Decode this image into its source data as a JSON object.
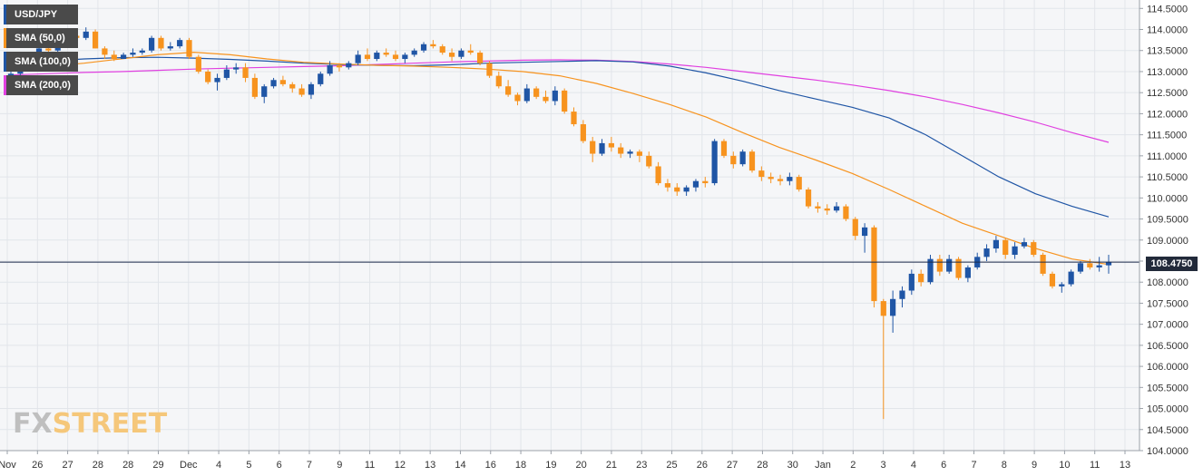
{
  "legend": [
    {
      "label": "USD/JPY",
      "color": "#1f55a5"
    },
    {
      "label": "SMA (50,0)",
      "color": "#f7931e"
    },
    {
      "label": "SMA (100,0)",
      "color": "#1f55a5"
    },
    {
      "label": "SMA (200,0)",
      "color": "#e040e0"
    }
  ],
  "watermark": {
    "fx": "FX",
    "street": "STREET"
  },
  "current_price_label": "108.4750",
  "chart_data": {
    "type": "candlestick",
    "title": "",
    "symbol": "USD/JPY",
    "ylim": [
      104.0,
      114.7
    ],
    "yticks": [
      "114.5000",
      "114.0000",
      "113.5000",
      "113.0000",
      "112.5000",
      "112.0000",
      "111.5000",
      "111.0000",
      "110.5000",
      "110.0000",
      "109.5000",
      "109.0000",
      "108.5000",
      "108.0000",
      "107.5000",
      "107.0000",
      "106.5000",
      "106.0000",
      "105.5000",
      "105.0000",
      "104.5000",
      "104.0000"
    ],
    "xticks": [
      "Nov",
      "26",
      "27",
      "28",
      "28",
      "29",
      "Dec",
      "4",
      "5",
      "6",
      "7",
      "9",
      "11",
      "12",
      "13",
      "14",
      "16",
      "18",
      "19",
      "20",
      "21",
      "23",
      "25",
      "26",
      "27",
      "28",
      "30",
      "Jan",
      "2",
      "3",
      "4",
      "6",
      "7",
      "8",
      "9",
      "10",
      "11",
      "13"
    ],
    "current_price": 108.475,
    "colors": {
      "up": "#1f55a5",
      "down": "#f7931e",
      "sma50": "#f7931e",
      "sma100": "#1f55a5",
      "sma200": "#e040e0",
      "price_line": "#1a2a4a"
    },
    "candles": [
      [
        112.9,
        113.0,
        112.85,
        112.95
      ],
      [
        112.95,
        113.1,
        112.85,
        113.05
      ],
      [
        113.05,
        113.45,
        113.0,
        113.4
      ],
      [
        113.4,
        113.6,
        113.3,
        113.55
      ],
      [
        113.55,
        113.7,
        113.45,
        113.5
      ],
      [
        113.5,
        113.8,
        113.45,
        113.75
      ],
      [
        113.75,
        113.95,
        113.7,
        113.85
      ],
      [
        113.85,
        113.95,
        113.7,
        113.8
      ],
      [
        113.8,
        114.05,
        113.75,
        113.95
      ],
      [
        113.95,
        114.0,
        113.55,
        113.55
      ],
      [
        113.55,
        113.6,
        113.3,
        113.4
      ],
      [
        113.4,
        113.5,
        113.25,
        113.3
      ],
      [
        113.3,
        113.45,
        113.3,
        113.4
      ],
      [
        113.4,
        113.55,
        113.35,
        113.45
      ],
      [
        113.45,
        113.55,
        113.4,
        113.5
      ],
      [
        113.5,
        113.85,
        113.45,
        113.8
      ],
      [
        113.8,
        113.85,
        113.5,
        113.55
      ],
      [
        113.55,
        113.7,
        113.5,
        113.6
      ],
      [
        113.6,
        113.8,
        113.55,
        113.75
      ],
      [
        113.75,
        113.8,
        113.3,
        113.35
      ],
      [
        113.35,
        113.4,
        112.95,
        113.0
      ],
      [
        113.0,
        113.05,
        112.7,
        112.75
      ],
      [
        112.75,
        112.95,
        112.55,
        112.85
      ],
      [
        112.85,
        113.15,
        112.8,
        113.05
      ],
      [
        113.05,
        113.2,
        112.95,
        113.1
      ],
      [
        113.1,
        113.2,
        112.75,
        112.85
      ],
      [
        112.85,
        112.95,
        112.35,
        112.4
      ],
      [
        112.4,
        112.7,
        112.25,
        112.65
      ],
      [
        112.65,
        112.85,
        112.6,
        112.8
      ],
      [
        112.8,
        112.9,
        112.65,
        112.7
      ],
      [
        112.7,
        112.75,
        112.5,
        112.6
      ],
      [
        112.6,
        112.7,
        112.4,
        112.45
      ],
      [
        112.45,
        112.75,
        112.35,
        112.7
      ],
      [
        112.7,
        113.0,
        112.65,
        112.95
      ],
      [
        112.95,
        113.25,
        112.9,
        113.15
      ],
      [
        113.15,
        113.2,
        113.0,
        113.1
      ],
      [
        113.1,
        113.25,
        113.05,
        113.2
      ],
      [
        113.2,
        113.5,
        113.15,
        113.4
      ],
      [
        113.4,
        113.55,
        113.25,
        113.3
      ],
      [
        113.3,
        113.5,
        113.25,
        113.45
      ],
      [
        113.45,
        113.55,
        113.35,
        113.4
      ],
      [
        113.4,
        113.5,
        113.25,
        113.3
      ],
      [
        113.3,
        113.45,
        113.2,
        113.4
      ],
      [
        113.4,
        113.55,
        113.35,
        113.5
      ],
      [
        113.5,
        113.7,
        113.45,
        113.65
      ],
      [
        113.65,
        113.75,
        113.55,
        113.6
      ],
      [
        113.6,
        113.65,
        113.4,
        113.45
      ],
      [
        113.45,
        113.55,
        113.25,
        113.35
      ],
      [
        113.35,
        113.55,
        113.3,
        113.5
      ],
      [
        113.5,
        113.65,
        113.4,
        113.45
      ],
      [
        113.45,
        113.5,
        113.15,
        113.2
      ],
      [
        113.2,
        113.25,
        112.85,
        112.9
      ],
      [
        112.9,
        113.0,
        112.6,
        112.65
      ],
      [
        112.65,
        112.8,
        112.4,
        112.45
      ],
      [
        112.45,
        112.5,
        112.2,
        112.3
      ],
      [
        112.3,
        112.7,
        112.25,
        112.6
      ],
      [
        112.6,
        112.65,
        112.35,
        112.4
      ],
      [
        112.4,
        112.55,
        112.25,
        112.3
      ],
      [
        112.3,
        112.65,
        112.2,
        112.55
      ],
      [
        112.55,
        112.6,
        112.0,
        112.05
      ],
      [
        112.05,
        112.15,
        111.7,
        111.75
      ],
      [
        111.75,
        111.85,
        111.3,
        111.35
      ],
      [
        111.35,
        111.45,
        110.85,
        111.05
      ],
      [
        111.05,
        111.4,
        111.0,
        111.3
      ],
      [
        111.3,
        111.45,
        111.1,
        111.2
      ],
      [
        111.2,
        111.3,
        110.95,
        111.05
      ],
      [
        111.05,
        111.15,
        110.95,
        111.1
      ],
      [
        111.1,
        111.15,
        110.85,
        111.0
      ],
      [
        111.0,
        111.1,
        110.7,
        110.75
      ],
      [
        110.75,
        110.85,
        110.3,
        110.35
      ],
      [
        110.35,
        110.45,
        110.15,
        110.25
      ],
      [
        110.25,
        110.35,
        110.05,
        110.15
      ],
      [
        110.15,
        110.3,
        110.05,
        110.25
      ],
      [
        110.25,
        110.45,
        110.15,
        110.4
      ],
      [
        110.4,
        110.5,
        110.25,
        110.35
      ],
      [
        110.35,
        111.4,
        110.3,
        111.35
      ],
      [
        111.35,
        111.4,
        110.95,
        111.0
      ],
      [
        111.0,
        111.1,
        110.7,
        110.8
      ],
      [
        110.8,
        111.15,
        110.75,
        111.1
      ],
      [
        111.1,
        111.15,
        110.6,
        110.65
      ],
      [
        110.65,
        110.75,
        110.4,
        110.5
      ],
      [
        110.5,
        110.6,
        110.35,
        110.45
      ],
      [
        110.45,
        110.55,
        110.3,
        110.4
      ],
      [
        110.4,
        110.6,
        110.3,
        110.5
      ],
      [
        110.5,
        110.55,
        110.15,
        110.2
      ],
      [
        110.2,
        110.25,
        109.75,
        109.8
      ],
      [
        109.8,
        109.9,
        109.65,
        109.75
      ],
      [
        109.75,
        109.85,
        109.6,
        109.7
      ],
      [
        109.7,
        109.9,
        109.65,
        109.8
      ],
      [
        109.8,
        109.85,
        109.45,
        109.5
      ],
      [
        109.5,
        109.55,
        109.0,
        109.1
      ],
      [
        109.1,
        109.4,
        108.7,
        109.3
      ],
      [
        109.3,
        109.35,
        107.4,
        107.55
      ],
      [
        107.55,
        107.6,
        104.75,
        107.2
      ],
      [
        107.2,
        107.8,
        106.8,
        107.6
      ],
      [
        107.6,
        107.9,
        107.4,
        107.8
      ],
      [
        107.8,
        108.3,
        107.7,
        108.2
      ],
      [
        108.2,
        108.3,
        107.9,
        108.0
      ],
      [
        108.0,
        108.65,
        107.95,
        108.55
      ],
      [
        108.55,
        108.65,
        108.15,
        108.25
      ],
      [
        108.25,
        108.65,
        108.2,
        108.55
      ],
      [
        108.55,
        108.6,
        108.05,
        108.1
      ],
      [
        108.1,
        108.4,
        108.0,
        108.35
      ],
      [
        108.35,
        108.7,
        108.3,
        108.6
      ],
      [
        108.6,
        108.9,
        108.5,
        108.8
      ],
      [
        108.8,
        109.1,
        108.7,
        109.0
      ],
      [
        109.0,
        109.05,
        108.55,
        108.65
      ],
      [
        108.65,
        108.95,
        108.55,
        108.85
      ],
      [
        108.85,
        109.05,
        108.8,
        108.95
      ],
      [
        108.95,
        109.0,
        108.6,
        108.65
      ],
      [
        108.65,
        108.7,
        108.15,
        108.2
      ],
      [
        108.2,
        108.25,
        107.85,
        107.9
      ],
      [
        107.9,
        108.0,
        107.75,
        107.95
      ],
      [
        107.95,
        108.3,
        107.9,
        108.25
      ],
      [
        108.25,
        108.5,
        108.2,
        108.45
      ],
      [
        108.45,
        108.55,
        108.3,
        108.35
      ],
      [
        108.35,
        108.6,
        108.25,
        108.4
      ],
      [
        108.4,
        108.65,
        108.2,
        108.48
      ]
    ],
    "sma50": [
      113.05,
      113.12,
      113.2,
      113.3,
      113.4,
      113.46,
      113.4,
      113.3,
      113.22,
      113.18,
      113.15,
      113.13,
      113.1,
      113.06,
      113.0,
      112.9,
      112.72,
      112.48,
      112.22,
      111.92,
      111.55,
      111.2,
      110.9,
      110.58,
      110.2,
      109.8,
      109.4,
      109.1,
      108.8,
      108.55,
      108.42
    ],
    "sma100": [
      113.15,
      113.25,
      113.3,
      113.33,
      113.34,
      113.32,
      113.29,
      113.25,
      113.2,
      113.17,
      113.15,
      113.14,
      113.16,
      113.2,
      113.22,
      113.24,
      113.26,
      113.23,
      113.13,
      112.97,
      112.77,
      112.55,
      112.35,
      112.15,
      111.9,
      111.5,
      111.0,
      110.5,
      110.1,
      109.8,
      109.55
    ],
    "sma200": [
      112.92,
      112.95,
      112.98,
      113.0,
      113.03,
      113.06,
      113.08,
      113.1,
      113.12,
      113.14,
      113.17,
      113.2,
      113.23,
      113.25,
      113.27,
      113.28,
      113.27,
      113.24,
      113.18,
      113.1,
      113.0,
      112.9,
      112.8,
      112.68,
      112.55,
      112.4,
      112.22,
      112.02,
      111.8,
      111.55,
      111.32
    ]
  }
}
